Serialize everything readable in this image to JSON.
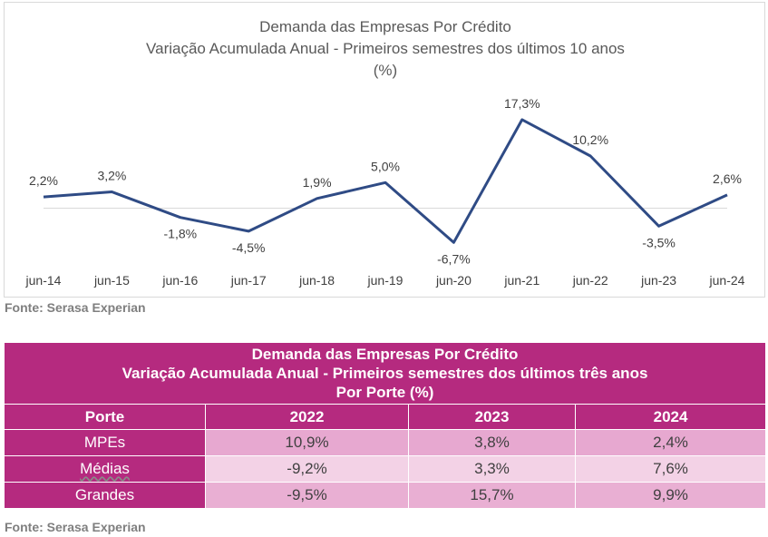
{
  "chart_data": {
    "type": "line",
    "title": "Demanda das Empresas Por Crédito",
    "subtitle": "Variação Acumulada Anual - Primeiros semestres dos últimos 10 anos",
    "unit": "(%)",
    "categories": [
      "jun-14",
      "jun-15",
      "jun-16",
      "jun-17",
      "jun-18",
      "jun-19",
      "jun-20",
      "jun-21",
      "jun-22",
      "jun-23",
      "jun-24"
    ],
    "values": [
      2.2,
      3.2,
      -1.8,
      -4.5,
      1.9,
      5.0,
      -6.7,
      17.3,
      10.2,
      -3.5,
      2.6
    ],
    "data_labels": [
      "2,2%",
      "3,2%",
      "-1,8%",
      "-4,5%",
      "1,9%",
      "5,0%",
      "-6,7%",
      "17,3%",
      "10,2%",
      "-3,5%",
      "2,6%"
    ],
    "ylim": [
      -7,
      18
    ],
    "grid": false,
    "line_color": "#2f4b85"
  },
  "chart_source": "Fonte: Serasa Experian",
  "table": {
    "title_lines": [
      "Demanda das Empresas Por Crédito",
      "Variação Acumulada Anual - Primeiros semestres dos últimos três anos",
      "Por Porte (%)"
    ],
    "headers": [
      "Porte",
      "2022",
      "2023",
      "2024"
    ],
    "rows": [
      {
        "label": "MPEs",
        "values": [
          "10,9%",
          "3,8%",
          "2,4%"
        ]
      },
      {
        "label": "Médias",
        "values": [
          "-9,2%",
          "3,3%",
          "7,6%"
        ]
      },
      {
        "label": "Grandes",
        "values": [
          "-9,5%",
          "15,7%",
          "9,9%"
        ]
      }
    ],
    "header_color": "#b52a7f"
  },
  "table_source": "Fonte: Serasa Experian"
}
